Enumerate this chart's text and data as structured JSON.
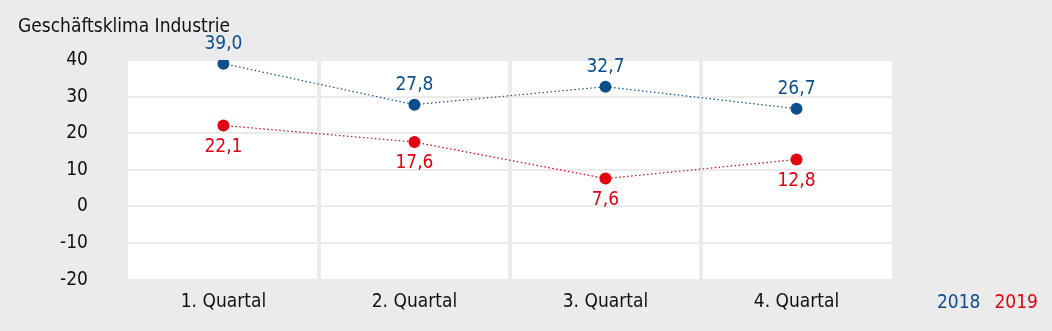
{
  "chart_data": {
    "type": "line",
    "title": "Geschäftsklima Industrie",
    "categories": [
      "1. Quartal",
      "2. Quartal",
      "3. Quartal",
      "4. Quartal"
    ],
    "series": [
      {
        "name": "2018",
        "color": "#0d4f8b",
        "values": [
          39.0,
          27.8,
          32.7,
          26.7
        ],
        "value_labels": [
          "39,0",
          "27,8",
          "32,7",
          "26,7"
        ]
      },
      {
        "name": "2019",
        "color": "#e3000f",
        "values": [
          22.1,
          17.6,
          7.6,
          12.8
        ],
        "value_labels": [
          "22,1",
          "17,6",
          "7,6",
          "12,8"
        ]
      }
    ],
    "ylim": [
      -20,
      40
    ],
    "yticks": [
      -20,
      -10,
      0,
      10,
      20,
      30,
      40
    ],
    "grid": true,
    "legend": "bottom right",
    "marker": "circle",
    "line_style": "dotted"
  }
}
